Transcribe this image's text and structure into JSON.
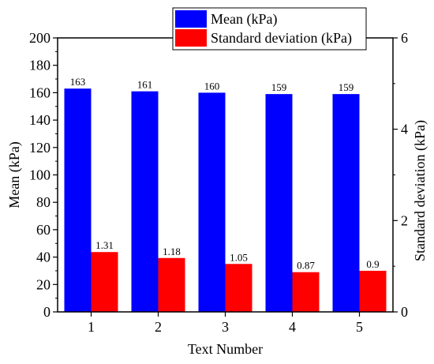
{
  "chart_data": {
    "type": "bar",
    "categories": [
      "1",
      "2",
      "3",
      "4",
      "5"
    ],
    "xlabel": "Text Number",
    "ylabel_left": "Mean (kPa)",
    "ylabel_right": "Standard deviation (kPa)",
    "ylim_left": [
      0,
      200
    ],
    "yticks_left": [
      0,
      20,
      40,
      60,
      80,
      100,
      120,
      140,
      160,
      180,
      200
    ],
    "ylim_right": [
      0,
      6
    ],
    "yticks_right": [
      0,
      2,
      4,
      6
    ],
    "grid": false,
    "legend_position": "top-right",
    "series": [
      {
        "name": "Mean (kPa)",
        "axis": "left",
        "color": "#0000ff",
        "values": [
          163,
          161,
          160,
          159,
          159
        ],
        "labels": [
          "163",
          "161",
          "160",
          "159",
          "159"
        ]
      },
      {
        "name": "Standard deviation (kPa)",
        "axis": "right",
        "color": "#ff0000",
        "values": [
          1.31,
          1.18,
          1.05,
          0.87,
          0.9
        ],
        "labels": [
          "1.31",
          "1.18",
          "1.05",
          "0.87",
          "0.9"
        ]
      }
    ]
  }
}
